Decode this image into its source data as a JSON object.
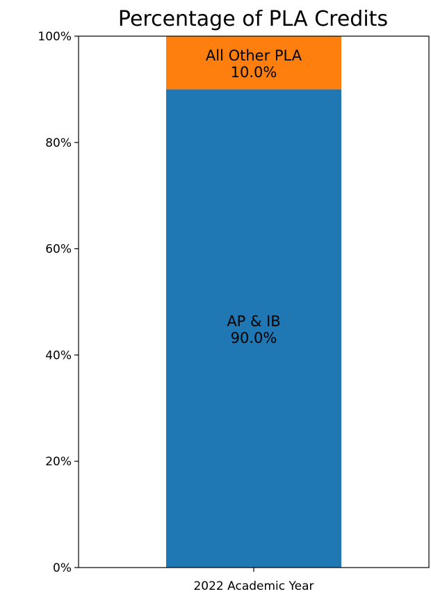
{
  "chart_data": {
    "type": "bar",
    "stacked": true,
    "title": "Percentage of PLA Credits",
    "xlabel": "",
    "ylabel": "",
    "categories": [
      "2022 Academic Year"
    ],
    "series": [
      {
        "name": "AP & IB",
        "values": [
          90.0
        ],
        "label": "90.0%",
        "color": "#1f77b4"
      },
      {
        "name": "All Other PLA",
        "values": [
          10.0
        ],
        "label": "10.0%",
        "color": "#ff7f0e"
      }
    ],
    "ylim": [
      0,
      100
    ],
    "yticks": [
      {
        "value": 0,
        "label": "0%"
      },
      {
        "value": 20,
        "label": "20%"
      },
      {
        "value": 40,
        "label": "40%"
      },
      {
        "value": 60,
        "label": "60%"
      },
      {
        "value": 80,
        "label": "80%"
      },
      {
        "value": 100,
        "label": "100%"
      }
    ],
    "grid": false,
    "legend": "none"
  }
}
